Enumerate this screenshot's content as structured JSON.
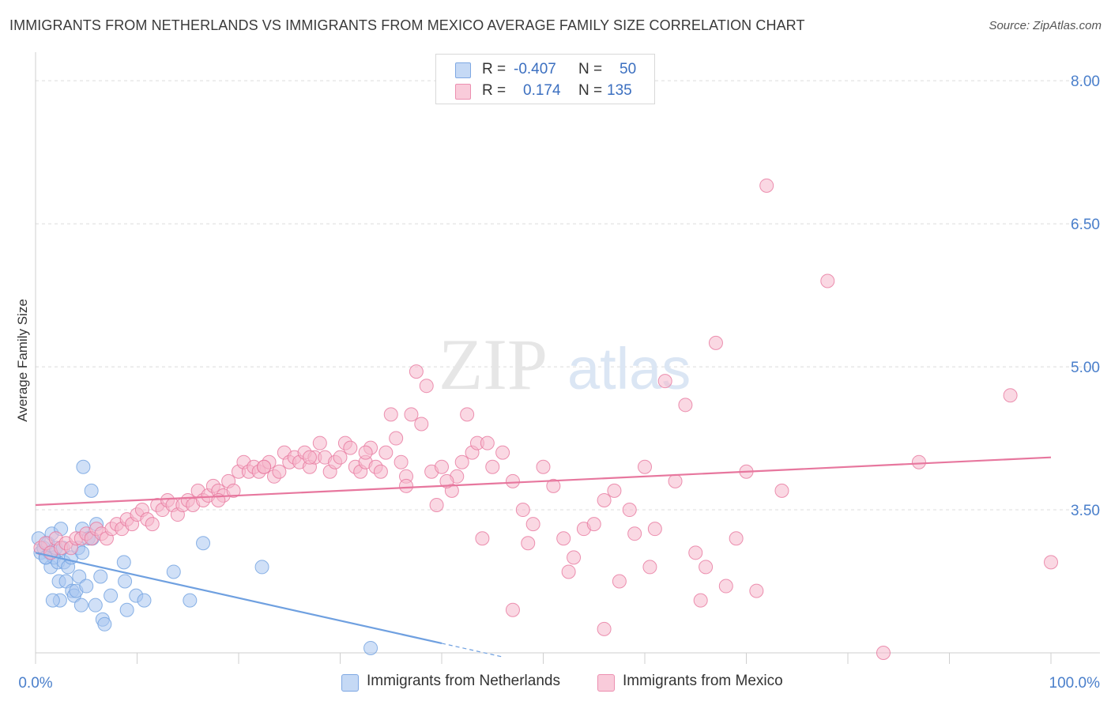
{
  "header": {
    "title": "IMMIGRANTS FROM NETHERLANDS VS IMMIGRANTS FROM MEXICO AVERAGE FAMILY SIZE CORRELATION CHART",
    "source": "Source: ZipAtlas.com"
  },
  "watermark": {
    "zip": "ZIP",
    "atlas": "atlas"
  },
  "legend_box": {
    "rows": [
      {
        "r_label": "R =",
        "r_value": "-0.407",
        "n_label": "N =",
        "n_value": "50",
        "color": "#a9c6f0"
      },
      {
        "r_label": "R =",
        "r_value": "0.174",
        "n_label": "N =",
        "n_value": "135",
        "color": "#f6b8cc"
      }
    ]
  },
  "bottom_legend": {
    "items": [
      {
        "label": "Immigrants from Netherlands",
        "color": "#a9c6f0"
      },
      {
        "label": "Immigrants from Mexico",
        "color": "#f6b8cc"
      }
    ]
  },
  "chart_data": {
    "type": "scatter",
    "title": "IMMIGRANTS FROM NETHERLANDS VS IMMIGRANTS FROM MEXICO AVERAGE FAMILY SIZE CORRELATION CHART",
    "xlabel": "",
    "ylabel": "Average Family Size",
    "xlim": [
      0,
      100
    ],
    "ylim": [
      2.0,
      8.2
    ],
    "x_tick_labels": [
      "0.0%",
      "100.0%"
    ],
    "y_ticks": [
      3.5,
      5.0,
      6.5,
      8.0
    ],
    "y_tick_labels": [
      "3.50",
      "5.00",
      "6.50",
      "8.00"
    ],
    "grid": true,
    "series": [
      {
        "name": "Immigrants from Netherlands",
        "color": "#6fa0e0",
        "fill": "#a9c6f0",
        "trend": {
          "x0": 0,
          "y0": 3.05,
          "x1": 40,
          "y1": 2.1,
          "dashed_to": 46
        },
        "points": [
          [
            0.3,
            3.2
          ],
          [
            0.5,
            3.05
          ],
          [
            0.8,
            3.1
          ],
          [
            1.0,
            3.0
          ],
          [
            1.2,
            3.15
          ],
          [
            1.4,
            3.05
          ],
          [
            1.5,
            2.9
          ],
          [
            1.6,
            3.25
          ],
          [
            1.8,
            3.0
          ],
          [
            2.0,
            3.1
          ],
          [
            2.2,
            2.95
          ],
          [
            2.3,
            2.75
          ],
          [
            2.4,
            2.55
          ],
          [
            2.5,
            3.3
          ],
          [
            2.7,
            3.1
          ],
          [
            2.8,
            2.95
          ],
          [
            3.0,
            2.75
          ],
          [
            3.2,
            2.9
          ],
          [
            3.5,
            3.0
          ],
          [
            3.6,
            2.65
          ],
          [
            3.8,
            2.6
          ],
          [
            4.0,
            2.65
          ],
          [
            4.2,
            3.1
          ],
          [
            4.3,
            2.8
          ],
          [
            4.5,
            2.5
          ],
          [
            4.6,
            3.05
          ],
          [
            5.0,
            2.7
          ],
          [
            4.6,
            3.3
          ],
          [
            5.2,
            3.2
          ],
          [
            5.5,
            3.7
          ],
          [
            5.6,
            3.2
          ],
          [
            5.9,
            2.5
          ],
          [
            6.0,
            3.35
          ],
          [
            6.4,
            2.8
          ],
          [
            6.6,
            2.35
          ],
          [
            6.8,
            2.3
          ],
          [
            7.4,
            2.6
          ],
          [
            8.7,
            2.95
          ],
          [
            8.8,
            2.75
          ],
          [
            9.0,
            2.45
          ],
          [
            9.9,
            2.6
          ],
          [
            10.7,
            2.55
          ],
          [
            13.6,
            2.85
          ],
          [
            15.2,
            2.55
          ],
          [
            16.5,
            3.15
          ],
          [
            22.3,
            2.9
          ],
          [
            33.0,
            2.05
          ],
          [
            4.7,
            3.95
          ],
          [
            1.0,
            3.0
          ],
          [
            1.7,
            2.55
          ]
        ]
      },
      {
        "name": "Immigrants from Mexico",
        "color": "#e7779e",
        "fill": "#f6b8cc",
        "trend": {
          "x0": 0,
          "y0": 3.55,
          "x1": 100,
          "y1": 4.05
        },
        "points": [
          [
            0.5,
            3.1
          ],
          [
            1.0,
            3.15
          ],
          [
            1.5,
            3.05
          ],
          [
            2.0,
            3.2
          ],
          [
            2.5,
            3.1
          ],
          [
            3.0,
            3.15
          ],
          [
            3.5,
            3.1
          ],
          [
            4.0,
            3.2
          ],
          [
            4.5,
            3.2
          ],
          [
            5.0,
            3.25
          ],
          [
            5.5,
            3.2
          ],
          [
            6.0,
            3.3
          ],
          [
            6.5,
            3.25
          ],
          [
            7.0,
            3.2
          ],
          [
            7.5,
            3.3
          ],
          [
            8.0,
            3.35
          ],
          [
            8.5,
            3.3
          ],
          [
            9.0,
            3.4
          ],
          [
            9.5,
            3.35
          ],
          [
            10.0,
            3.45
          ],
          [
            10.5,
            3.5
          ],
          [
            11.0,
            3.4
          ],
          [
            11.5,
            3.35
          ],
          [
            12.0,
            3.55
          ],
          [
            12.5,
            3.5
          ],
          [
            13.0,
            3.6
          ],
          [
            13.5,
            3.55
          ],
          [
            14.0,
            3.45
          ],
          [
            14.5,
            3.55
          ],
          [
            15.0,
            3.6
          ],
          [
            15.5,
            3.55
          ],
          [
            16.0,
            3.7
          ],
          [
            16.5,
            3.6
          ],
          [
            17.0,
            3.65
          ],
          [
            17.5,
            3.75
          ],
          [
            18.0,
            3.7
          ],
          [
            18.5,
            3.65
          ],
          [
            19.0,
            3.8
          ],
          [
            19.5,
            3.7
          ],
          [
            20.0,
            3.9
          ],
          [
            20.5,
            4.0
          ],
          [
            21.0,
            3.9
          ],
          [
            21.5,
            3.95
          ],
          [
            22.0,
            3.9
          ],
          [
            22.5,
            3.95
          ],
          [
            23.0,
            4.0
          ],
          [
            23.5,
            3.85
          ],
          [
            24.0,
            3.9
          ],
          [
            24.5,
            4.1
          ],
          [
            25.0,
            4.0
          ],
          [
            25.5,
            4.05
          ],
          [
            26.0,
            4.0
          ],
          [
            26.5,
            4.1
          ],
          [
            27.0,
            3.95
          ],
          [
            27.5,
            4.05
          ],
          [
            28.0,
            4.2
          ],
          [
            28.5,
            4.05
          ],
          [
            29.0,
            3.9
          ],
          [
            29.5,
            4.0
          ],
          [
            30.0,
            4.05
          ],
          [
            30.5,
            4.2
          ],
          [
            31.0,
            4.15
          ],
          [
            31.5,
            3.95
          ],
          [
            32.0,
            3.9
          ],
          [
            32.5,
            4.0
          ],
          [
            33.0,
            4.15
          ],
          [
            33.5,
            3.95
          ],
          [
            34.0,
            3.9
          ],
          [
            34.5,
            4.1
          ],
          [
            35.0,
            4.5
          ],
          [
            35.5,
            4.25
          ],
          [
            36.0,
            4.0
          ],
          [
            36.5,
            3.85
          ],
          [
            37.0,
            4.5
          ],
          [
            37.5,
            4.95
          ],
          [
            38.0,
            4.4
          ],
          [
            38.5,
            4.8
          ],
          [
            39.0,
            3.9
          ],
          [
            39.5,
            3.55
          ],
          [
            40.0,
            3.95
          ],
          [
            41.0,
            3.7
          ],
          [
            41.5,
            3.85
          ],
          [
            42.0,
            4.0
          ],
          [
            42.5,
            4.5
          ],
          [
            43.0,
            4.1
          ],
          [
            43.5,
            4.2
          ],
          [
            44.0,
            3.2
          ],
          [
            45.0,
            3.95
          ],
          [
            46.0,
            4.1
          ],
          [
            47.0,
            3.8
          ],
          [
            48.0,
            3.5
          ],
          [
            48.5,
            3.15
          ],
          [
            49.0,
            3.35
          ],
          [
            50.0,
            3.95
          ],
          [
            51.0,
            3.75
          ],
          [
            52.0,
            3.2
          ],
          [
            53.0,
            3.0
          ],
          [
            54.0,
            3.3
          ],
          [
            55.0,
            3.35
          ],
          [
            56.0,
            3.6
          ],
          [
            57.0,
            3.7
          ],
          [
            57.5,
            2.75
          ],
          [
            58.5,
            3.5
          ],
          [
            59.0,
            3.25
          ],
          [
            60.0,
            3.95
          ],
          [
            61.0,
            3.3
          ],
          [
            62.0,
            4.85
          ],
          [
            63.0,
            3.8
          ],
          [
            64.0,
            4.6
          ],
          [
            65.0,
            3.05
          ],
          [
            66.0,
            2.9
          ],
          [
            67.0,
            5.25
          ],
          [
            68.0,
            2.7
          ],
          [
            69.0,
            3.2
          ],
          [
            70.0,
            3.9
          ],
          [
            71.0,
            2.65
          ],
          [
            72.0,
            6.9
          ],
          [
            73.5,
            3.7
          ],
          [
            78.0,
            5.9
          ],
          [
            87.0,
            4.0
          ],
          [
            96.0,
            4.7
          ],
          [
            100.0,
            2.95
          ],
          [
            47.0,
            2.45
          ],
          [
            56.0,
            2.25
          ],
          [
            83.5,
            2.0
          ],
          [
            65.5,
            2.55
          ],
          [
            36.5,
            3.75
          ],
          [
            44.5,
            4.2
          ],
          [
            52.5,
            2.85
          ],
          [
            60.5,
            2.9
          ],
          [
            22.5,
            3.95
          ],
          [
            18.0,
            3.6
          ],
          [
            27.0,
            4.05
          ],
          [
            32.5,
            4.1
          ],
          [
            40.5,
            3.8
          ]
        ]
      }
    ]
  }
}
